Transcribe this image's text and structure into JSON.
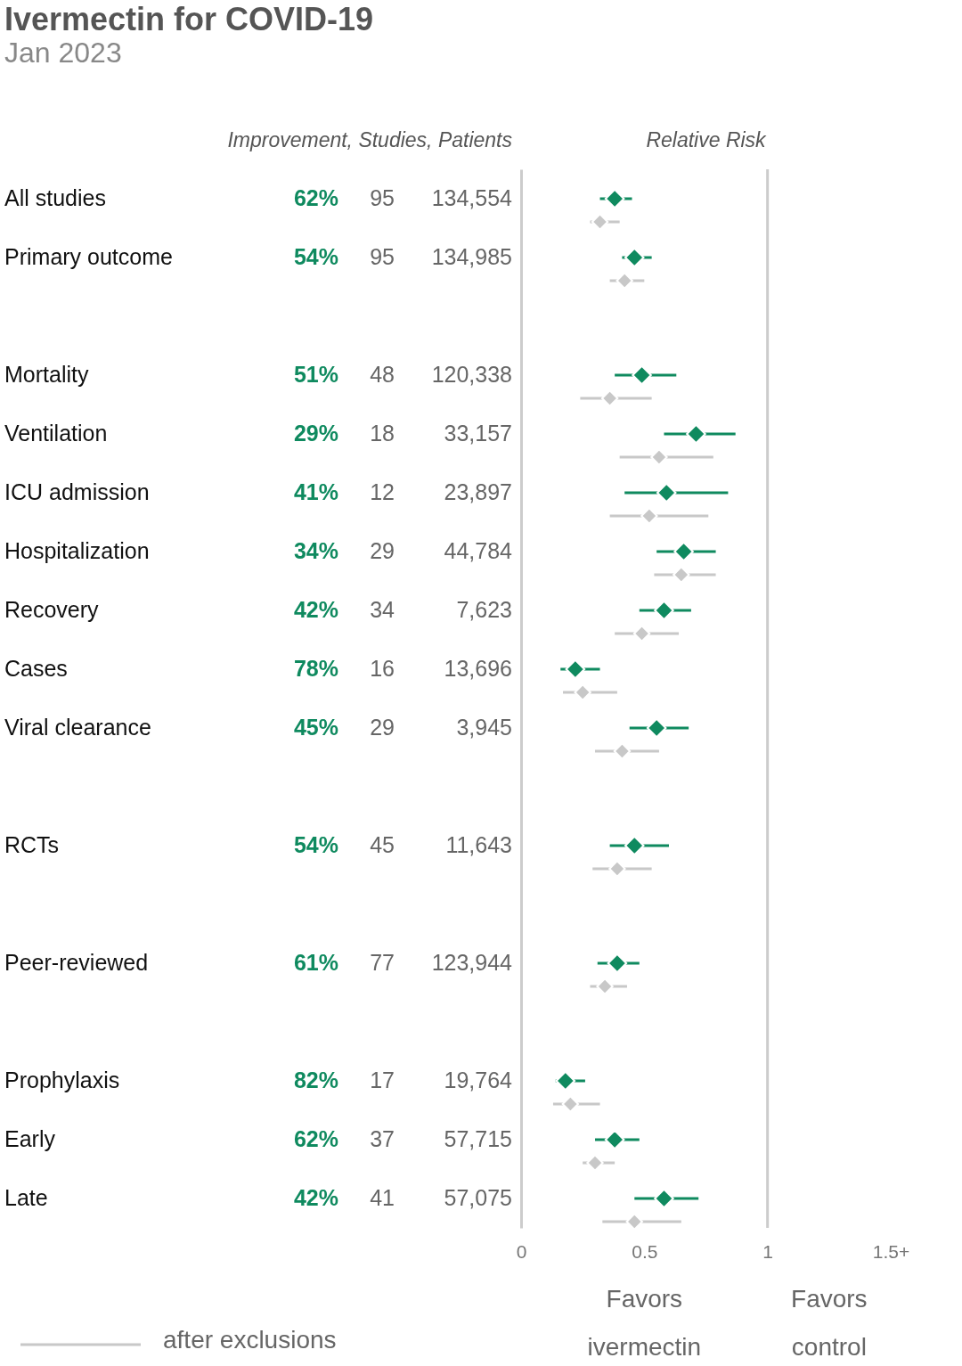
{
  "chart_data": [
    {
      "type": "other",
      "title": "Ivermectin for COVID-19",
      "subtitle": "Jan 2023",
      "xlabel": "Improvement, Studies, Patients",
      "categories": [
        "All studies",
        "Primary outcome",
        null,
        "Mortality",
        "Ventilation",
        "ICU admission",
        "Hospitalization",
        "Recovery",
        "Cases",
        "Viral clearance",
        null,
        "RCTs",
        null,
        "Peer-reviewed",
        null,
        "Prophylaxis",
        "Early",
        "Late"
      ],
      "series": [
        {
          "color": "#0f8a5f",
          "values": [
            62,
            54,
            null,
            51,
            29,
            41,
            34,
            42,
            78,
            45,
            null,
            54,
            null,
            61,
            null,
            82,
            62,
            42
          ],
          "value_labels": [
            "62%",
            "54%",
            null,
            "51%",
            "29%",
            "41%",
            "34%",
            "42%",
            "78%",
            "45%",
            null,
            "54%",
            null,
            "61%",
            null,
            "82%",
            "62%",
            "42%"
          ]
        },
        {
          "color": "#666666",
          "values": [
            95,
            95,
            null,
            48,
            18,
            12,
            29,
            34,
            16,
            29,
            null,
            45,
            null,
            77,
            null,
            17,
            37,
            41
          ],
          "value_labels": [
            "95",
            "95",
            null,
            "48",
            "18",
            "12",
            "29",
            "34",
            "16",
            "29",
            null,
            "45",
            null,
            "77",
            null,
            "17",
            "37",
            "41"
          ]
        },
        {
          "color": "#666666",
          "values": [
            134554,
            134985,
            null,
            120338,
            33157,
            23897,
            44784,
            7623,
            13696,
            3945,
            null,
            11643,
            null,
            123944,
            null,
            19764,
            57715,
            57075
          ],
          "value_labels": [
            "134,554",
            "134,985",
            null,
            "120,338",
            "33,157",
            "23,897",
            "44,784",
            "7,623",
            "13,696",
            "3,945",
            null,
            "11,643",
            null,
            "123,944",
            null,
            "19,764",
            "57,715",
            "57,075"
          ]
        }
      ]
    },
    {
      "type": "scatter",
      "orientation": "horizontal",
      "title": "Relative Risk",
      "marker": "diamond",
      "tick_labels": "x",
      "legend": "bottom left",
      "xlim": [
        0,
        1.5
      ],
      "xticks": [
        0,
        0.5,
        1,
        {
          "value": 1.5,
          "label": "1.5+"
        }
      ],
      "ref_lines": [
        {
          "axis": "x",
          "value": 1,
          "color": "#cccccc"
        }
      ],
      "annotations": [
        "Favors ivermectin",
        "Favors control"
      ],
      "series": [
        {
          "color": "#0f8a5f",
          "values": [
            0.38,
            0.46,
            null,
            0.49,
            0.71,
            0.59,
            0.66,
            0.58,
            0.22,
            0.55,
            null,
            0.46,
            null,
            0.39,
            null,
            0.18,
            0.38,
            0.58
          ],
          "errors": [
            [
              0.32,
              0.45
            ],
            [
              0.41,
              0.53
            ],
            null,
            [
              0.38,
              0.63
            ],
            [
              0.58,
              0.87
            ],
            [
              0.42,
              0.84
            ],
            [
              0.55,
              0.79
            ],
            [
              0.48,
              0.69
            ],
            [
              0.16,
              0.32
            ],
            [
              0.44,
              0.68
            ],
            null,
            [
              0.36,
              0.6
            ],
            null,
            [
              0.31,
              0.48
            ],
            null,
            [
              0.14,
              0.26
            ],
            [
              0.3,
              0.48
            ],
            [
              0.46,
              0.72
            ]
          ]
        },
        {
          "name": "after exclusions",
          "color": "#c8c8c8",
          "values": [
            0.32,
            0.42,
            null,
            0.36,
            0.56,
            0.52,
            0.65,
            0.49,
            0.25,
            0.41,
            null,
            0.39,
            null,
            0.34,
            null,
            0.2,
            0.3,
            0.46
          ],
          "errors": [
            [
              0.28,
              0.4
            ],
            [
              0.36,
              0.5
            ],
            null,
            [
              0.24,
              0.53
            ],
            [
              0.4,
              0.78
            ],
            [
              0.36,
              0.76
            ],
            [
              0.54,
              0.79
            ],
            [
              0.38,
              0.64
            ],
            [
              0.17,
              0.39
            ],
            [
              0.3,
              0.56
            ],
            null,
            [
              0.29,
              0.53
            ],
            null,
            [
              0.28,
              0.43
            ],
            null,
            [
              0.13,
              0.32
            ],
            [
              0.25,
              0.38
            ],
            [
              0.33,
              0.65
            ]
          ]
        }
      ]
    }
  ]
}
